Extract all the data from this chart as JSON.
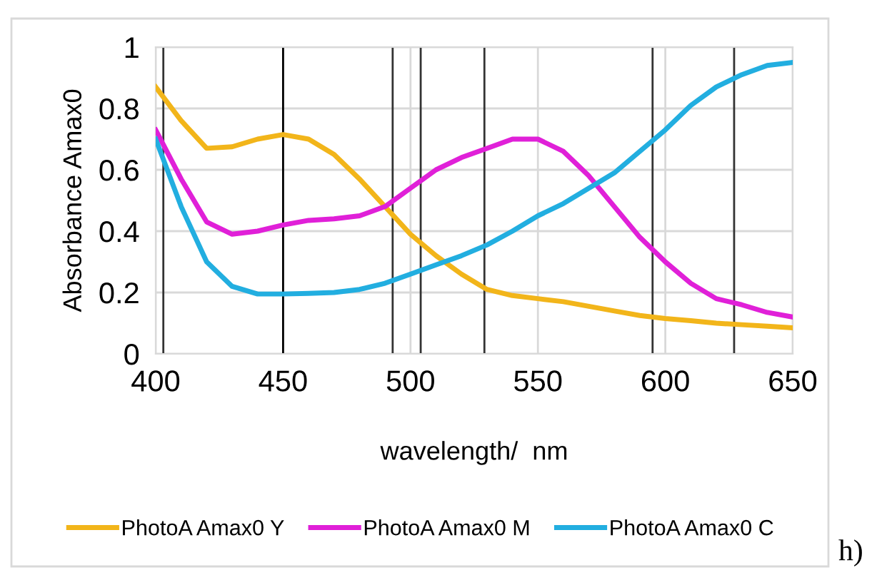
{
  "chart_data": {
    "type": "line",
    "xlabel": "wavelength/  nm",
    "ylabel": "Absorbance Amax0",
    "x": [
      400,
      410,
      420,
      430,
      440,
      450,
      460,
      470,
      480,
      490,
      500,
      510,
      520,
      530,
      540,
      550,
      560,
      570,
      580,
      590,
      600,
      610,
      620,
      630,
      640,
      650
    ],
    "series": [
      {
        "name": "PhotoA Amax0 Y",
        "color": "#f2b51a",
        "values": [
          0.87,
          0.76,
          0.67,
          0.675,
          0.7,
          0.715,
          0.7,
          0.65,
          0.57,
          0.48,
          0.39,
          0.32,
          0.26,
          0.21,
          0.19,
          0.18,
          0.17,
          0.155,
          0.14,
          0.125,
          0.115,
          0.108,
          0.1,
          0.095,
          0.09,
          0.085
        ]
      },
      {
        "name": "PhotoA Amax0 M",
        "color": "#e020d8",
        "values": [
          0.73,
          0.57,
          0.43,
          0.39,
          0.4,
          0.42,
          0.435,
          0.44,
          0.45,
          0.48,
          0.54,
          0.6,
          0.64,
          0.67,
          0.7,
          0.7,
          0.66,
          0.58,
          0.48,
          0.38,
          0.3,
          0.23,
          0.18,
          0.16,
          0.135,
          0.12
        ]
      },
      {
        "name": "PhotoA Amax0 C",
        "color": "#22aee0",
        "values": [
          0.7,
          0.48,
          0.3,
          0.22,
          0.195,
          0.195,
          0.197,
          0.2,
          0.21,
          0.23,
          0.26,
          0.29,
          0.32,
          0.355,
          0.4,
          0.45,
          0.49,
          0.54,
          0.59,
          0.66,
          0.73,
          0.81,
          0.87,
          0.91,
          0.94,
          0.95
        ]
      }
    ],
    "xlim": [
      400,
      650
    ],
    "xticks": [
      400,
      450,
      500,
      550,
      600,
      650
    ],
    "ylim": [
      0,
      1
    ],
    "yticks": [
      0,
      0.2,
      0.4,
      0.6,
      0.8,
      1
    ],
    "grid": true,
    "legend": "bottom",
    "marker": "none",
    "line_style": "solid",
    "ref_lines": [
      {
        "axis": "x",
        "value": 403,
        "color": "#333333"
      },
      {
        "axis": "x",
        "value": 450,
        "color": "#000000"
      },
      {
        "axis": "x",
        "value": 493,
        "color": "#333333"
      },
      {
        "axis": "x",
        "value": 504,
        "color": "#333333"
      },
      {
        "axis": "x",
        "value": 529,
        "color": "#333333"
      },
      {
        "axis": "x",
        "value": 595,
        "color": "#333333"
      },
      {
        "axis": "x",
        "value": 627,
        "color": "#333333"
      }
    ],
    "annotations": [
      "h)"
    ]
  }
}
